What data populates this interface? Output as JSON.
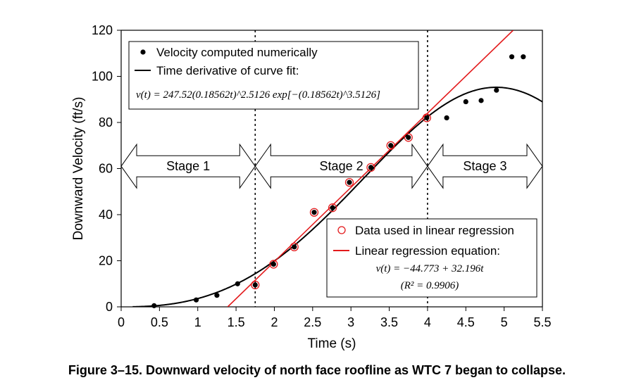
{
  "caption": "Figure 3–15.  Downward velocity of north face roofline as WTC 7 began to collapse.",
  "chart_data": {
    "type": "scatter",
    "xlabel": "Time (s)",
    "ylabel": "Downward Velocity (ft/s)",
    "xlim": [
      0,
      5.5
    ],
    "ylim": [
      0,
      120
    ],
    "xticks": [
      "0",
      "0.5",
      "1",
      "1.5",
      "2",
      "2.5",
      "3",
      "3.5",
      "4",
      "4.5",
      "5",
      "5.5"
    ],
    "yticks": [
      "0",
      "20",
      "40",
      "60",
      "80",
      "100",
      "120"
    ],
    "grid": false,
    "series": [
      {
        "name": "Velocity computed numerically",
        "color": "#000000",
        "x": [
          0.43,
          0.98,
          1.25,
          1.52,
          1.75,
          1.99,
          2.26,
          2.52,
          2.76,
          2.98,
          3.26,
          3.52,
          3.75,
          3.99,
          4.25,
          4.5,
          4.7,
          4.9,
          5.1,
          5.25
        ],
        "y": [
          0.5,
          3,
          5,
          10,
          9.5,
          18.5,
          26,
          41,
          43,
          54,
          60.5,
          70,
          73.5,
          82,
          82,
          89,
          89.5,
          94,
          108.5,
          108.5
        ]
      },
      {
        "name": "Time derivative of curve fit:",
        "color": "#000000",
        "equation": "v(t) = 247.52(0.18562t)^2.5126 exp[−(0.18562t)^3.5126]",
        "model": {
          "a": 247.52,
          "b": 0.18562,
          "p": 2.5126,
          "q": 3.5126
        }
      },
      {
        "name": "Data used in linear regression",
        "color": "#e31a1c",
        "x": [
          1.75,
          1.99,
          2.26,
          2.52,
          2.76,
          2.98,
          3.26,
          3.52,
          3.75,
          3.99
        ],
        "y": [
          9.5,
          18.5,
          26,
          41,
          43,
          54,
          60.5,
          70,
          73.5,
          82
        ]
      },
      {
        "name": "Linear regression equation:",
        "color": "#e31a1c",
        "equation": "v(t) = −44.773 + 32.196t",
        "r2": "(R² = 0.9906)",
        "intercept": -44.773,
        "slope": 32.196
      }
    ],
    "dividers_x": [
      1.75,
      4
    ],
    "stages": [
      {
        "label": "Stage 1",
        "from": 0,
        "to": 1.75
      },
      {
        "label": "Stage 2",
        "from": 1.75,
        "to": 4
      },
      {
        "label": "Stage 3",
        "from": 4,
        "to": 5.5
      }
    ]
  }
}
